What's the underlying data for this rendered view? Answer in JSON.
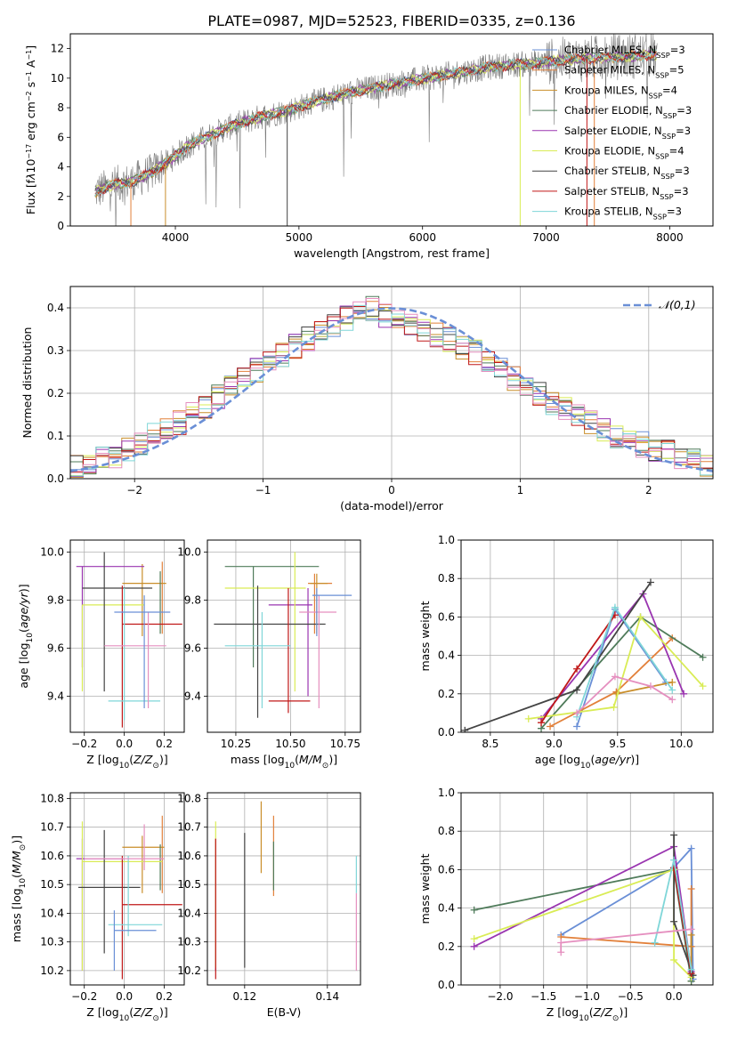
{
  "figure": {
    "suptitle": "PLATE=0987, MJD=52523, FIBERID=0335, z=0.136"
  },
  "palette": {
    "Chabrier MILES": "#6a8fd6",
    "Salpeter MILES": "#e2803a",
    "Kroupa MILES": "#c98e2a",
    "Chabrier ELODIE": "#4f7b5a",
    "Salpeter ELODIE": "#9a35b0",
    "Kroupa ELODIE": "#d9ec55",
    "Chabrier STELIB": "#444444",
    "Salpeter STELIB": "#c01818",
    "Kroupa STELIB": "#7fd6d8",
    "pink": "#e58fbf",
    "data": "#7a7a7a"
  },
  "chart_data": [
    {
      "id": "spectrum",
      "type": "line",
      "title": "PLATE=0987, MJD=52523, FIBERID=0335, z=0.136",
      "xlabel": "wavelength [Angstrom, rest frame]",
      "ylabel_html": "Flux [f<tspan font-style='italic'>λ</tspan>10<tspan baseline-shift='super' font-size='8'>−17</tspan> erg cm<tspan baseline-shift='super' font-size='8'>−2</tspan> s<tspan baseline-shift='super' font-size='8'>−1</tspan> A<tspan baseline-shift='super' font-size='8'>−1</tspan>]",
      "xlim": [
        3150,
        8350
      ],
      "ylim": [
        0,
        13
      ],
      "xticks": [
        4000,
        5000,
        6000,
        7000,
        8000
      ],
      "yticks": [
        0,
        2,
        4,
        6,
        8,
        10,
        12
      ],
      "grid": false,
      "legend_position": "top-right",
      "continuum": {
        "x": [
          3350,
          3500,
          3650,
          3800,
          3950,
          4100,
          4300,
          4500,
          4700,
          4900,
          5100,
          5300,
          5500,
          5700,
          5900,
          6100,
          6300,
          6500,
          6700,
          6900,
          7100,
          7300,
          7500,
          7700,
          7900
        ],
        "y": [
          2.3,
          2.8,
          3.0,
          3.6,
          4.4,
          5.4,
          6.2,
          6.9,
          7.4,
          7.8,
          8.3,
          8.8,
          9.2,
          9.5,
          9.8,
          10.1,
          10.4,
          10.7,
          10.9,
          11.0,
          11.2,
          11.3,
          11.4,
          11.5,
          11.6
        ]
      },
      "series": [
        {
          "name": "Chabrier MILES, N$_{SSP}$=3"
        },
        {
          "name": "Salpeter MILES, N$_{SSP}$=5"
        },
        {
          "name": "Kroupa MILES, N$_{SSP}$=4"
        },
        {
          "name": "Chabrier ELODIE, N$_{SSP}$=3"
        },
        {
          "name": "Salpeter ELODIE, N$_{SSP}$=3"
        },
        {
          "name": "Kroupa ELODIE, N$_{SSP}$=4"
        },
        {
          "name": "Chabrier STELIB, N$_{SSP}$=3"
        },
        {
          "name": "Salpeter STELIB, N$_{SSP}$=3"
        },
        {
          "name": "Kroupa STELIB, N$_{SSP}$=3"
        }
      ]
    },
    {
      "id": "residuals",
      "type": "histogram",
      "xlabel": "(data-model)/error",
      "ylabel": "Normed distribution",
      "xlim": [
        -2.5,
        2.5
      ],
      "ylim": [
        0,
        0.45
      ],
      "xticks": [
        -2,
        -1,
        0,
        1,
        2
      ],
      "yticks": [
        0.0,
        0.1,
        0.2,
        0.3,
        0.4
      ],
      "grid": true,
      "legend_position": "top-right",
      "legend": [
        "$\\mathcal{N}(0,1)$"
      ],
      "bins": [
        -2.5,
        -2.4,
        -2.3,
        -2.2,
        -2.1,
        -2.0,
        -1.9,
        -1.8,
        -1.7,
        -1.6,
        -1.5,
        -1.4,
        -1.3,
        -1.2,
        -1.1,
        -1.0,
        -0.9,
        -0.8,
        -0.7,
        -0.6,
        -0.5,
        -0.4,
        -0.3,
        -0.2,
        -0.1,
        0.0,
        0.1,
        0.2,
        0.3,
        0.4,
        0.5,
        0.6,
        0.7,
        0.8,
        0.9,
        1.0,
        1.1,
        1.2,
        1.3,
        1.4,
        1.5,
        1.6,
        1.7,
        1.8,
        1.9,
        2.0,
        2.1,
        2.2,
        2.3,
        2.4,
        2.5
      ],
      "reference_heights": [
        0.025,
        0.035,
        0.045,
        0.055,
        0.07,
        0.085,
        0.1,
        0.12,
        0.13,
        0.15,
        0.17,
        0.19,
        0.21,
        0.23,
        0.255,
        0.27,
        0.29,
        0.31,
        0.33,
        0.345,
        0.36,
        0.375,
        0.39,
        0.4,
        0.38,
        0.37,
        0.355,
        0.345,
        0.335,
        0.325,
        0.31,
        0.295,
        0.27,
        0.255,
        0.235,
        0.215,
        0.2,
        0.18,
        0.165,
        0.15,
        0.13,
        0.115,
        0.1,
        0.09,
        0.08,
        0.07,
        0.06,
        0.05,
        0.04,
        0.035
      ],
      "gaussian": {
        "mean": 0,
        "sigma": 1
      }
    },
    {
      "id": "age-vs-Z",
      "type": "errorbar",
      "xlabel": "Z [log$_{10}$($Z/Z_\\odot$)]",
      "ylabel": "age  [log$_{10}$($age/yr$)]",
      "xlim": [
        -0.27,
        0.3
      ],
      "ylim": [
        9.25,
        10.05
      ],
      "xticks": [
        -0.2,
        0.0,
        0.2
      ],
      "yticks": [
        9.4,
        9.6,
        9.8,
        10.0
      ],
      "grid": true,
      "points": [
        {
          "x": 0.19,
          "y": 9.87,
          "xl": 0.19,
          "xh": 0.19,
          "yl": 9.66,
          "yh": 9.96
        },
        {
          "x": 0.09,
          "y": 9.87,
          "xl": -0.01,
          "xh": 0.21,
          "yl": 9.65,
          "yh": 9.95
        },
        {
          "x": 0.18,
          "y": 9.87,
          "xl": 0.18,
          "xh": 0.18,
          "yl": 9.66,
          "yh": 9.92
        },
        {
          "x": -0.21,
          "y": 9.94,
          "xl": -0.24,
          "xh": 0.1,
          "yl": 9.52,
          "yh": 9.94
        },
        {
          "x": -0.21,
          "y": 9.78,
          "xl": -0.21,
          "xh": 0.1,
          "yl": 9.42,
          "yh": 9.78
        },
        {
          "x": -0.1,
          "y": 9.85,
          "xl": -0.21,
          "xh": 0.14,
          "yl": 9.42,
          "yh": 10.0
        },
        {
          "x": -0.01,
          "y": 9.7,
          "xl": -0.01,
          "xh": 0.29,
          "yl": 9.27,
          "yh": 9.86
        },
        {
          "x": 0.0,
          "y": 9.38,
          "xl": -0.08,
          "xh": 0.18,
          "yl": 9.3,
          "yh": 9.85
        },
        {
          "x": 0.12,
          "y": 9.61,
          "xl": -0.1,
          "xh": 0.21,
          "yl": 9.35,
          "yh": 9.75
        },
        {
          "x": 0.1,
          "y": 9.75,
          "xl": -0.05,
          "xh": 0.23,
          "yl": 9.35,
          "yh": 9.82
        }
      ]
    },
    {
      "id": "age-vs-mass",
      "type": "errorbar",
      "xlabel": "mass [log$_{10}$($M/M_\\odot$)]",
      "xlim": [
        10.12,
        10.82
      ],
      "ylim": [
        9.25,
        10.05
      ],
      "xticks": [
        10.25,
        10.5,
        10.75
      ],
      "yticks": [
        9.4,
        9.6,
        9.8,
        10.0
      ],
      "grid": true,
      "points": [
        {
          "x": 10.61,
          "y": 9.87,
          "xl": 10.58,
          "xh": 10.69,
          "yl": 9.66,
          "yh": 9.91
        },
        {
          "x": 10.62,
          "y": 9.87,
          "xl": 10.59,
          "xh": 10.67,
          "yl": 9.66,
          "yh": 9.91
        },
        {
          "x": 10.33,
          "y": 9.94,
          "xl": 10.2,
          "xh": 10.63,
          "yl": 9.52,
          "yh": 9.94
        },
        {
          "x": 10.58,
          "y": 9.78,
          "xl": 10.4,
          "xh": 10.6,
          "yl": 9.4,
          "yh": 9.85
        },
        {
          "x": 10.52,
          "y": 9.85,
          "xl": 10.2,
          "xh": 10.57,
          "yl": 9.42,
          "yh": 10.0
        },
        {
          "x": 10.35,
          "y": 9.7,
          "xl": 10.15,
          "xh": 10.66,
          "yl": 9.31,
          "yh": 9.86
        },
        {
          "x": 10.49,
          "y": 9.38,
          "xl": 10.4,
          "xh": 10.59,
          "yl": 9.33,
          "yh": 9.85
        },
        {
          "x": 10.37,
          "y": 9.61,
          "xl": 10.2,
          "xh": 10.5,
          "yl": 9.35,
          "yh": 9.75
        },
        {
          "x": 10.63,
          "y": 9.75,
          "xl": 10.54,
          "xh": 10.71,
          "yl": 9.35,
          "yh": 9.82
        },
        {
          "x": 10.62,
          "y": 9.82,
          "xl": 10.6,
          "xh": 10.78,
          "yl": 9.65,
          "yh": 9.85
        }
      ]
    },
    {
      "id": "mass-weight-vs-age",
      "type": "line",
      "xlabel": "age  [log$_{10}$($age/yr$)]",
      "ylabel": "mass weight",
      "xlim": [
        8.27,
        10.25
      ],
      "ylim": [
        0.0,
        1.0
      ],
      "xticks": [
        8.5,
        9.0,
        9.5,
        10.0
      ],
      "yticks": [
        0.0,
        0.2,
        0.4,
        0.6,
        0.8,
        1.0
      ],
      "grid": true,
      "series": [
        {
          "key": "Chabrier MILES",
          "x": [
            9.18,
            9.48,
            9.88
          ],
          "y": [
            0.03,
            0.64,
            0.26
          ]
        },
        {
          "key": "Salpeter MILES",
          "x": [
            8.97,
            9.49,
            9.93
          ],
          "y": [
            0.03,
            0.21,
            0.49
          ]
        },
        {
          "key": "Kroupa MILES",
          "x": [
            9.49,
            9.93
          ],
          "y": [
            0.2,
            0.26
          ]
        },
        {
          "key": "Chabrier ELODIE",
          "x": [
            8.9,
            9.68,
            10.17
          ],
          "y": [
            0.02,
            0.6,
            0.39
          ]
        },
        {
          "key": "Salpeter ELODIE",
          "x": [
            8.9,
            9.7,
            10.02
          ],
          "y": [
            0.07,
            0.72,
            0.2
          ]
        },
        {
          "key": "Kroupa ELODIE",
          "x": [
            8.8,
            9.47,
            9.68,
            10.17
          ],
          "y": [
            0.07,
            0.13,
            0.6,
            0.24
          ]
        },
        {
          "key": "Chabrier STELIB",
          "x": [
            8.3,
            9.18,
            9.76
          ],
          "y": [
            0.01,
            0.22,
            0.78
          ]
        },
        {
          "key": "Salpeter STELIB",
          "x": [
            8.9,
            9.18,
            9.48
          ],
          "y": [
            0.05,
            0.33,
            0.61
          ]
        },
        {
          "key": "Kroupa STELIB",
          "x": [
            9.18,
            9.48,
            9.93
          ],
          "y": [
            0.08,
            0.65,
            0.22
          ]
        },
        {
          "key": "pink",
          "x": [
            9.18,
            9.48,
            9.76,
            9.93
          ],
          "y": [
            0.1,
            0.29,
            0.24,
            0.17
          ]
        }
      ]
    },
    {
      "id": "mass-vs-Z",
      "type": "errorbar",
      "xlabel": "Z [log$_{10}$($Z/Z_\\odot$)]",
      "ylabel": "mass [log$_{10}$($M/M_\\odot$)]",
      "xlim": [
        -0.27,
        0.3
      ],
      "ylim": [
        10.15,
        10.82
      ],
      "xticks": [
        -0.2,
        0.0,
        0.2
      ],
      "yticks": [
        10.2,
        10.3,
        10.4,
        10.5,
        10.6,
        10.7,
        10.8
      ],
      "grid": true,
      "points": [
        {
          "x": 0.19,
          "y": 10.62,
          "xl": 0.19,
          "xh": 0.19,
          "yl": 10.47,
          "yh": 10.74
        },
        {
          "x": 0.09,
          "y": 10.63,
          "xl": -0.01,
          "xh": 0.2,
          "yl": 10.47,
          "yh": 10.67
        },
        {
          "x": 0.18,
          "y": 10.62,
          "xl": 0.18,
          "xh": 0.18,
          "yl": 10.48,
          "yh": 10.64
        },
        {
          "x": -0.21,
          "y": 10.59,
          "xl": -0.24,
          "xh": 0.0,
          "yl": 10.2,
          "yh": 10.66
        },
        {
          "x": -0.21,
          "y": 10.58,
          "xl": -0.21,
          "xh": 0.19,
          "yl": 10.2,
          "yh": 10.72
        },
        {
          "x": -0.1,
          "y": 10.49,
          "xl": -0.23,
          "xh": 0.08,
          "yl": 10.26,
          "yh": 10.69
        },
        {
          "x": -0.01,
          "y": 10.43,
          "xl": -0.01,
          "xh": 0.29,
          "yl": 10.17,
          "yh": 10.6
        },
        {
          "x": 0.02,
          "y": 10.36,
          "xl": -0.08,
          "xh": 0.19,
          "yl": 10.32,
          "yh": 10.6
        },
        {
          "x": 0.1,
          "y": 10.59,
          "xl": -0.2,
          "xh": 0.2,
          "yl": 10.55,
          "yh": 10.71
        },
        {
          "x": -0.05,
          "y": 10.34,
          "xl": -0.05,
          "xh": 0.16,
          "yl": 10.2,
          "yh": 10.41
        }
      ]
    },
    {
      "id": "mass-vs-EBV",
      "type": "errorbar",
      "xlabel": "E(B-V)",
      "xlim": [
        0.111,
        0.148
      ],
      "ylim": [
        10.15,
        10.82
      ],
      "xticks": [
        0.12,
        0.14
      ],
      "yticks": [
        10.2,
        10.3,
        10.4,
        10.5,
        10.6,
        10.7,
        10.8
      ],
      "grid": true,
      "points": [
        {
          "x": 0.127,
          "y": 10.64,
          "xl": 0.127,
          "xh": 0.127,
          "yl": 10.46,
          "yh": 10.74
        },
        {
          "x": 0.124,
          "y": 10.67,
          "xl": 0.124,
          "xh": 0.124,
          "yl": 10.54,
          "yh": 10.79
        },
        {
          "x": 0.127,
          "y": 10.63,
          "xl": 0.127,
          "xh": 0.127,
          "yl": 10.48,
          "yh": 10.65
        },
        {
          "x": 0.113,
          "y": 10.59,
          "xl": 0.113,
          "xh": 0.113,
          "yl": 10.2,
          "yh": 10.66
        },
        {
          "x": 0.113,
          "y": 10.58,
          "xl": 0.113,
          "xh": 0.113,
          "yl": 10.21,
          "yh": 10.72
        },
        {
          "x": 0.12,
          "y": 10.49,
          "xl": 0.12,
          "xh": 0.12,
          "yl": 10.21,
          "yh": 10.68
        },
        {
          "x": 0.113,
          "y": 10.43,
          "xl": 0.113,
          "xh": 0.113,
          "yl": 10.17,
          "yh": 10.66
        },
        {
          "x": 0.147,
          "y": 10.5,
          "xl": 0.147,
          "xh": 0.147,
          "yl": 10.47,
          "yh": 10.6
        },
        {
          "x": 0.147,
          "y": 10.34,
          "xl": 0.147,
          "xh": 0.147,
          "yl": 10.2,
          "yh": 10.47
        }
      ]
    },
    {
      "id": "mass-weight-vs-Z",
      "type": "line",
      "xlabel": "Z [log$_{10}$($Z/Z_\\odot$)]",
      "ylabel": "mass weight",
      "xlim": [
        -2.45,
        0.45
      ],
      "ylim": [
        0.0,
        1.0
      ],
      "xticks": [
        -2.0,
        -1.5,
        -1.0,
        -0.5,
        0.0
      ],
      "yticks": [
        0.0,
        0.2,
        0.4,
        0.6,
        0.8,
        1.0
      ],
      "grid": true,
      "series": [
        {
          "key": "Chabrier MILES",
          "x": [
            -1.3,
            0.0,
            0.2,
            0.22
          ],
          "y": [
            0.26,
            0.61,
            0.71,
            0.03
          ]
        },
        {
          "key": "Salpeter MILES",
          "x": [
            -1.3,
            0.2,
            0.2
          ],
          "y": [
            0.25,
            0.2,
            0.5
          ]
        },
        {
          "key": "Kroupa MILES",
          "x": [
            0.2,
            0.2
          ],
          "y": [
            0.02,
            0.26
          ]
        },
        {
          "key": "Chabrier ELODIE",
          "x": [
            -2.3,
            0.0,
            0.2
          ],
          "y": [
            0.39,
            0.6,
            0.02
          ]
        },
        {
          "key": "Salpeter ELODIE",
          "x": [
            -2.3,
            0.0,
            0.2
          ],
          "y": [
            0.2,
            0.72,
            0.07
          ]
        },
        {
          "key": "Kroupa ELODIE",
          "x": [
            -2.3,
            0.0,
            0.0,
            0.2
          ],
          "y": [
            0.24,
            0.6,
            0.13,
            0.04
          ]
        },
        {
          "key": "Chabrier STELIB",
          "x": [
            0.0,
            0.0,
            0.22
          ],
          "y": [
            0.78,
            0.33,
            0.05
          ]
        },
        {
          "key": "Salpeter STELIB",
          "x": [
            0.0,
            0.2
          ],
          "y": [
            0.61,
            0.06
          ]
        },
        {
          "key": "Kroupa STELIB",
          "x": [
            -0.22,
            0.0,
            0.2
          ],
          "y": [
            0.22,
            0.65,
            0.08
          ]
        },
        {
          "key": "pink",
          "x": [
            -1.3,
            -1.3,
            0.2
          ],
          "y": [
            0.17,
            0.22,
            0.29
          ]
        }
      ]
    }
  ]
}
